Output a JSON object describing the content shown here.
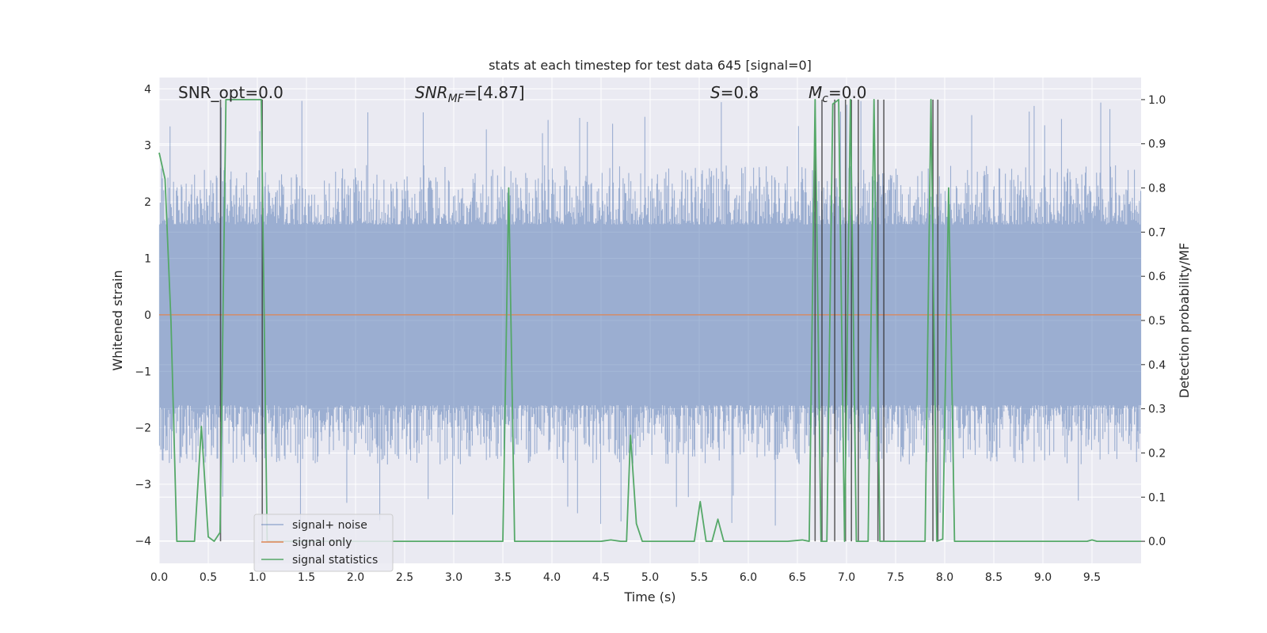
{
  "chart_data": {
    "type": "line",
    "title": "stats at each timestep for test data 645 [signal=0]",
    "xlabel": "Time (s)",
    "ylabel": "Whitened strain",
    "ylabel_right": "Detection probability/MF",
    "xlim": [
      0.0,
      10.0
    ],
    "ylim": [
      -4.4,
      4.2
    ],
    "ylim_right": [
      -0.05,
      1.05
    ],
    "x_ticks": [
      0.0,
      0.5,
      1.0,
      1.5,
      2.0,
      2.5,
      3.0,
      3.5,
      4.0,
      4.5,
      5.0,
      5.5,
      6.0,
      6.5,
      7.0,
      7.5,
      8.0,
      8.5,
      9.0,
      9.5
    ],
    "x_tick_labels": [
      "0.0",
      "0.5",
      "1.0",
      "1.5",
      "2.0",
      "2.5",
      "3.0",
      "3.5",
      "4.0",
      "4.5",
      "5.0",
      "5.5",
      "6.0",
      "6.5",
      "7.0",
      "7.5",
      "8.0",
      "8.5",
      "9.0",
      "9.5"
    ],
    "y_ticks": [
      -4,
      -3,
      -2,
      -1,
      0,
      1,
      2,
      3,
      4
    ],
    "y_tick_labels": [
      "−4",
      "−3",
      "−2",
      "−1",
      "0",
      "1",
      "2",
      "3",
      "4"
    ],
    "y_right_ticks": [
      0.0,
      0.1,
      0.2,
      0.3,
      0.4,
      0.5,
      0.6,
      0.7,
      0.8,
      0.9,
      1.0
    ],
    "y_right_tick_labels": [
      "0.0",
      "0.1",
      "0.2",
      "0.3",
      "0.4",
      "0.5",
      "0.6",
      "0.7",
      "0.8",
      "0.9",
      "1.0"
    ],
    "grid": true,
    "legend_position": "lower-left",
    "annotations": [
      {
        "text": "SNR_opt=0.0",
        "x_data": 0.19,
        "y_data": 3.85
      },
      {
        "text": "SNRMF=[4.87]",
        "x_data": 2.6,
        "y_data": 3.85
      },
      {
        "text": "S=0.8",
        "x_data": 5.6,
        "y_data": 3.85
      },
      {
        "text": "Mc=0.0",
        "x_data": 6.6,
        "y_data": 3.85
      }
    ],
    "series": [
      {
        "name": "signal+ noise",
        "color": "#4c72b0",
        "axis": "left",
        "style": "noise_band",
        "core_half_width": 1.6,
        "typical_peak": 2.3,
        "max_abs": 3.8
      },
      {
        "name": "signal only",
        "color": "#dd8452",
        "axis": "left",
        "x": [
          0.0,
          10.0
        ],
        "y": [
          0.0,
          0.0
        ]
      },
      {
        "name": "signal statistics",
        "color": "#55a868",
        "axis": "right",
        "x": [
          0.0,
          0.06,
          0.12,
          0.18,
          0.24,
          0.3,
          0.36,
          0.43,
          0.5,
          0.56,
          0.62,
          0.68,
          0.74,
          0.8,
          0.86,
          0.92,
          0.98,
          1.04,
          1.1,
          1.3,
          1.6,
          2.0,
          2.5,
          3.0,
          3.3,
          3.5,
          3.56,
          3.62,
          3.68,
          3.9,
          4.2,
          4.5,
          4.6,
          4.7,
          4.76,
          4.8,
          4.86,
          4.92,
          5.0,
          5.3,
          5.45,
          5.51,
          5.57,
          5.63,
          5.69,
          5.75,
          6.0,
          6.4,
          6.55,
          6.62,
          6.68,
          6.74,
          6.8,
          6.86,
          6.92,
          6.98,
          7.04,
          7.1,
          7.16,
          7.22,
          7.28,
          7.34,
          7.4,
          7.46,
          7.6,
          7.8,
          7.86,
          7.92,
          7.98,
          8.04,
          8.1,
          8.16,
          8.22,
          8.4,
          8.8,
          9.2,
          9.45,
          9.5,
          9.55,
          10.0
        ],
        "y": [
          0.88,
          0.82,
          0.5,
          0.0,
          0.0,
          0.0,
          0.0,
          0.26,
          0.01,
          0.0,
          0.02,
          1.0,
          1.0,
          1.0,
          1.0,
          1.0,
          1.0,
          1.0,
          0.0,
          0.0,
          0.0,
          0.0,
          0.0,
          0.0,
          0.0,
          0.0,
          0.8,
          0.0,
          0.0,
          0.0,
          0.0,
          0.0,
          0.003,
          0.0,
          0.0,
          0.24,
          0.04,
          0.0,
          0.0,
          0.0,
          0.0,
          0.09,
          0.0,
          0.0,
          0.05,
          0.0,
          0.0,
          0.0,
          0.003,
          0.0,
          1.0,
          0.0,
          0.0,
          0.99,
          1.0,
          0.0,
          1.0,
          0.0,
          0.0,
          0.0,
          1.0,
          0.0,
          0.0,
          0.0,
          0.0,
          0.0,
          1.0,
          0.0,
          0.005,
          0.8,
          0.0,
          0.0,
          0.0,
          0.0,
          0.0,
          0.0,
          0.0,
          0.003,
          0.0,
          0.0
        ]
      }
    ],
    "vertical_markers": {
      "color": "#333333",
      "x": [
        0.625,
        1.05,
        6.68,
        6.75,
        6.88,
        6.99,
        7.05,
        7.12,
        7.32,
        7.38,
        7.88,
        7.93
      ]
    }
  }
}
